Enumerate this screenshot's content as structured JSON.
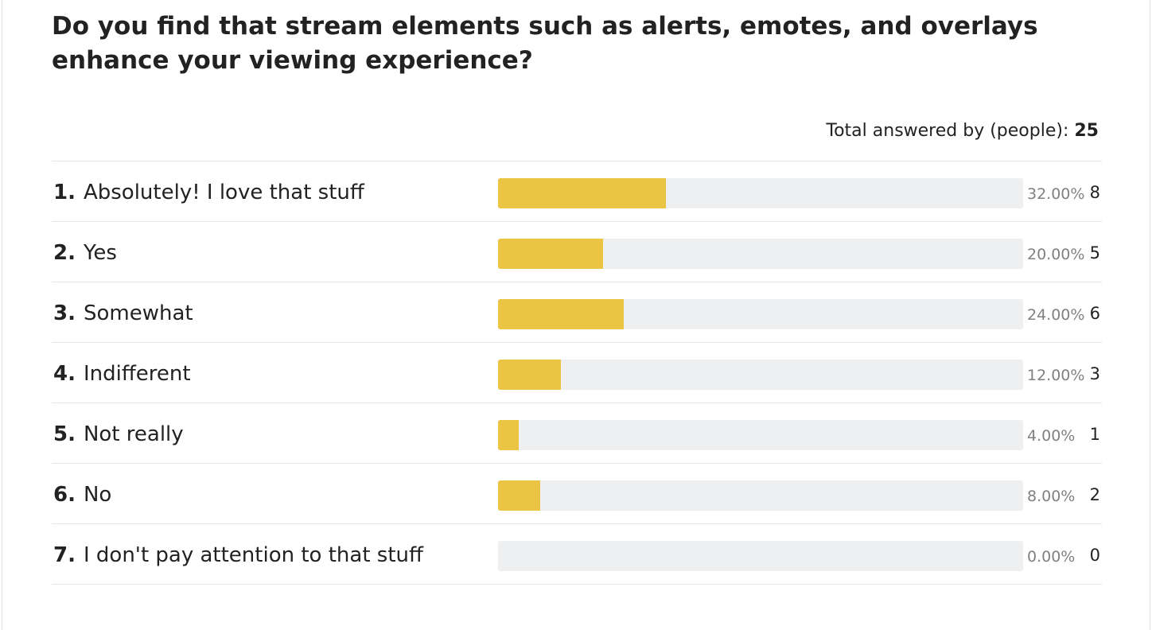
{
  "question": "Do you find that stream elements such as alerts, emotes, and overlays enhance your viewing experience?",
  "total": {
    "label": "Total answered by (people):",
    "value": "25"
  },
  "colors": {
    "bar_fill": "#ecc443",
    "bar_track": "#edeff0"
  },
  "chart_data": {
    "type": "bar",
    "orientation": "horizontal",
    "title": "Do you find that stream elements such as alerts, emotes, and overlays enhance your viewing experience?",
    "categories": [
      "Absolutely! I love that stuff",
      "Yes",
      "Somewhat",
      "Indifferent",
      "Not really",
      "No",
      "I don't pay attention to that stuff"
    ],
    "values": [
      32,
      20,
      24,
      12,
      4,
      8,
      0
    ],
    "counts": [
      8,
      5,
      6,
      3,
      1,
      2,
      0
    ],
    "xlim": [
      0,
      100
    ],
    "rows": [
      {
        "num": "1.",
        "label": "Absolutely! I love that stuff",
        "percent": 32,
        "percent_text": "32.00%",
        "count": "8"
      },
      {
        "num": "2.",
        "label": "Yes",
        "percent": 20,
        "percent_text": "20.00%",
        "count": "5"
      },
      {
        "num": "3.",
        "label": "Somewhat",
        "percent": 24,
        "percent_text": "24.00%",
        "count": "6"
      },
      {
        "num": "4.",
        "label": "Indifferent",
        "percent": 12,
        "percent_text": "12.00%",
        "count": "3"
      },
      {
        "num": "5.",
        "label": "Not really",
        "percent": 4,
        "percent_text": "4.00%",
        "count": "1"
      },
      {
        "num": "6.",
        "label": "No",
        "percent": 8,
        "percent_text": "8.00%",
        "count": "2"
      },
      {
        "num": "7.",
        "label": "I don't pay attention to that stuff",
        "percent": 0,
        "percent_text": "0.00%",
        "count": "0"
      }
    ]
  }
}
